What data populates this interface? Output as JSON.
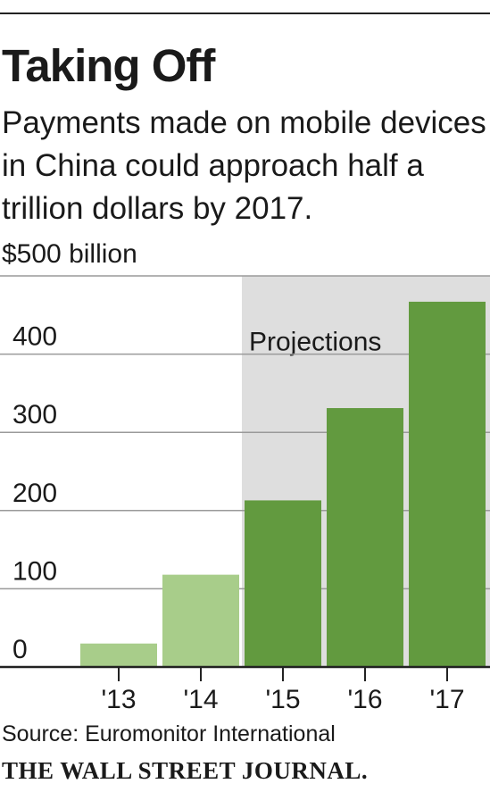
{
  "header": {
    "title": "Taking Off",
    "subtitle": "Payments made on mobile devices in China could approach half a trillion dollars by 2017."
  },
  "chart_data": {
    "type": "bar",
    "unit_label": "$500 billion",
    "categories": [
      "'13",
      "'14",
      "'15",
      "'16",
      "'17"
    ],
    "values": [
      30,
      118,
      213,
      331,
      467
    ],
    "projected": [
      false,
      false,
      true,
      true,
      true
    ],
    "projection_label": "Projections",
    "ylim": [
      0,
      500
    ],
    "yticks": [
      0,
      100,
      200,
      300,
      400
    ],
    "grid": true,
    "colors": {
      "actual": "#a8cd8a",
      "projected": "#629a3f",
      "projection_shade": "#dedede",
      "grid": "#9a9a9a",
      "axis": "#222222"
    }
  },
  "footer": {
    "source": "Source: Euromonitor International",
    "brand": "THE WALL STREET JOURNAL."
  }
}
